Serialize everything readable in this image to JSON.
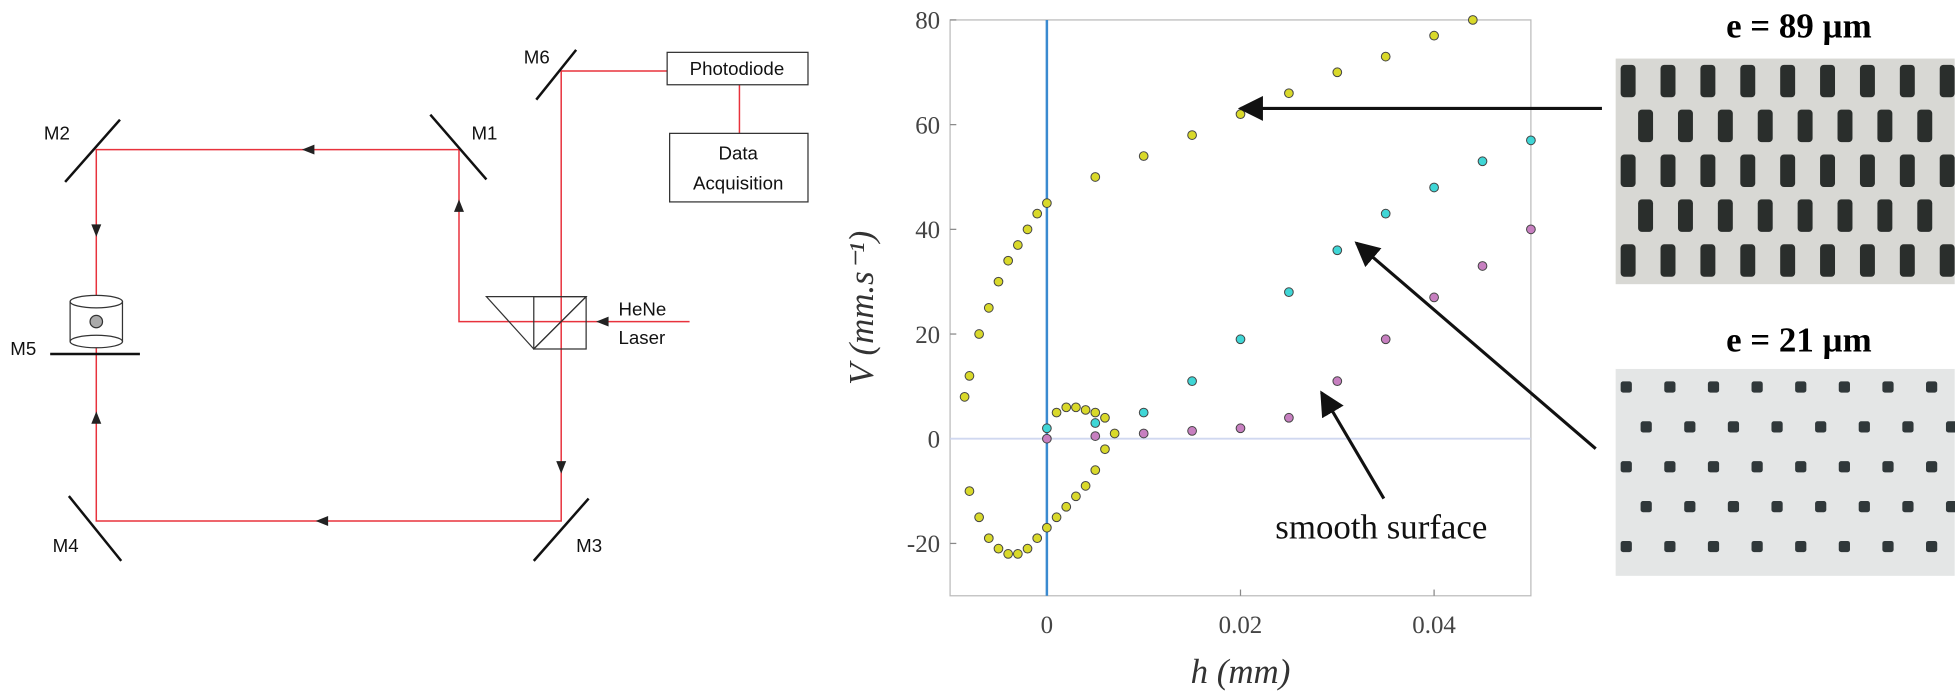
{
  "diagram": {
    "labels": {
      "m1": "M1",
      "m2": "M2",
      "m3": "M3",
      "m4": "M4",
      "m5": "M5",
      "m6": "M6",
      "photodiode": "Photodiode",
      "data_acquisition": [
        "Data",
        "Acquisition"
      ],
      "laser": [
        "HeNe",
        "Laser"
      ]
    }
  },
  "chart_data": {
    "type": "scatter",
    "xlabel": "h (mm)",
    "ylabel": "V (mm.s⁻¹)",
    "xlim": [
      -0.01,
      0.05
    ],
    "ylim": [
      -30,
      80
    ],
    "xticks": [
      0,
      0.02,
      0.04
    ],
    "yticks": [
      -20,
      0,
      20,
      40,
      60,
      80
    ],
    "annotation": "smooth surface",
    "series": [
      {
        "color": "#d9d92a",
        "x": [
          -0.0085,
          -0.008,
          -0.007,
          -0.006,
          -0.005,
          -0.004,
          -0.003,
          -0.002,
          -0.001,
          0,
          0.005,
          0.01,
          0.015,
          0.02,
          0.025,
          0.03,
          0.035,
          0.04,
          0.044,
          -0.008,
          -0.007,
          -0.006,
          -0.005,
          -0.004,
          -0.003,
          -0.002,
          -0.001,
          0,
          0.001,
          0.002,
          0.003,
          0.004,
          0.005,
          0.006,
          0.007,
          0.006,
          0.005,
          0.004,
          0.003,
          0.002,
          0.001
        ],
        "values": [
          8,
          12,
          20,
          25,
          30,
          34,
          37,
          40,
          43,
          45,
          50,
          54,
          58,
          62,
          66,
          70,
          73,
          77,
          80,
          -10,
          -15,
          -19,
          -21,
          -22,
          -22,
          -21,
          -19,
          -17,
          -15,
          -13,
          -11,
          -9,
          -6,
          -2,
          1,
          4,
          5,
          5.5,
          6,
          6,
          5
        ]
      },
      {
        "color": "#3fd6d6",
        "x": [
          0,
          0.005,
          0.01,
          0.015,
          0.02,
          0.025,
          0.03,
          0.035,
          0.04,
          0.045,
          0.05
        ],
        "values": [
          2,
          3,
          5,
          11,
          19,
          28,
          36,
          43,
          48,
          53,
          57
        ]
      },
      {
        "color": "#c77fc0",
        "x": [
          0,
          0.005,
          0.01,
          0.015,
          0.02,
          0.025,
          0.03,
          0.035,
          0.04,
          0.045,
          0.05
        ],
        "values": [
          0,
          0.5,
          1,
          1.5,
          2,
          4,
          11,
          19,
          27,
          33,
          40
        ]
      }
    ]
  },
  "photos": {
    "top_label": "e = 89 µm",
    "bottom_label": "e = 21 µm"
  }
}
